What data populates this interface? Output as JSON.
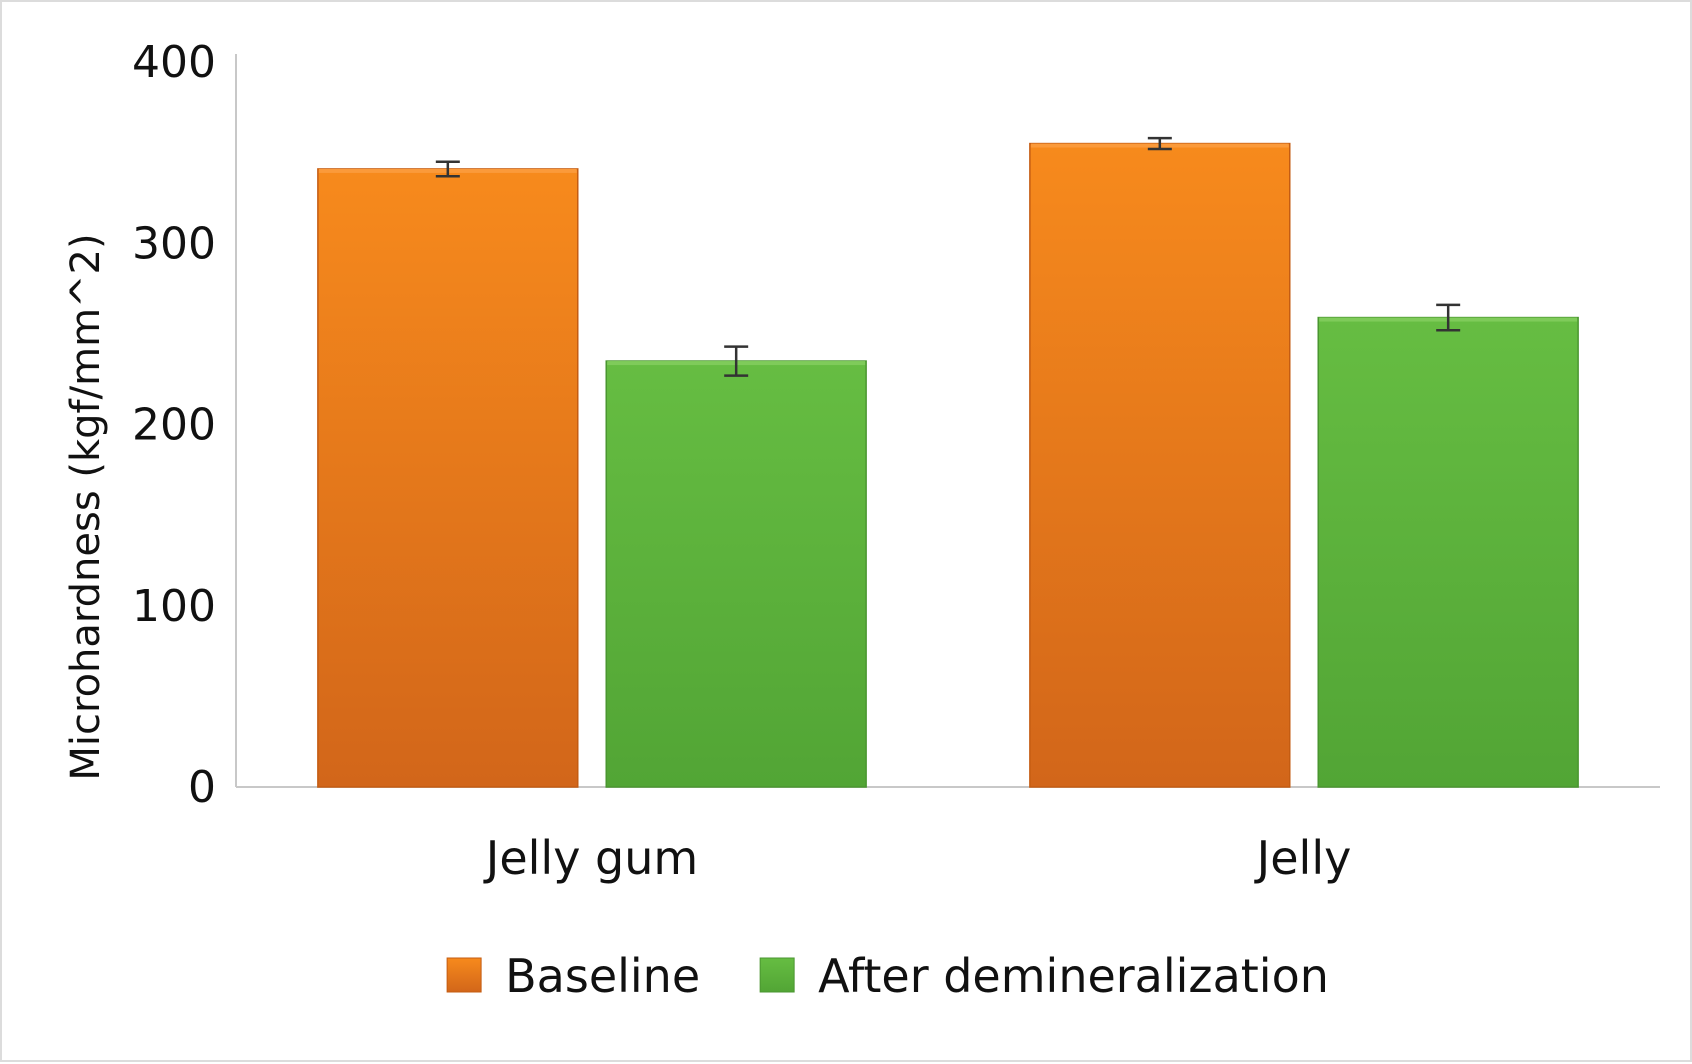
{
  "chart_data": {
    "type": "bar",
    "title": "",
    "xlabel": "",
    "ylabel": "Microhardness (kgf/mm^2)",
    "ylim": [
      0,
      400
    ],
    "yticks": [
      0,
      100,
      200,
      300,
      400
    ],
    "categories": [
      "Jelly gum",
      "Jelly"
    ],
    "series": [
      {
        "name": "Baseline",
        "color": "#f07d14",
        "values": [
          341,
          355
        ],
        "errors": [
          4,
          3
        ]
      },
      {
        "name": "After demineralization",
        "color": "#5eb33a",
        "values": [
          235,
          259
        ],
        "errors": [
          8,
          7
        ]
      }
    ],
    "legend_position": "bottom",
    "grid": false
  }
}
